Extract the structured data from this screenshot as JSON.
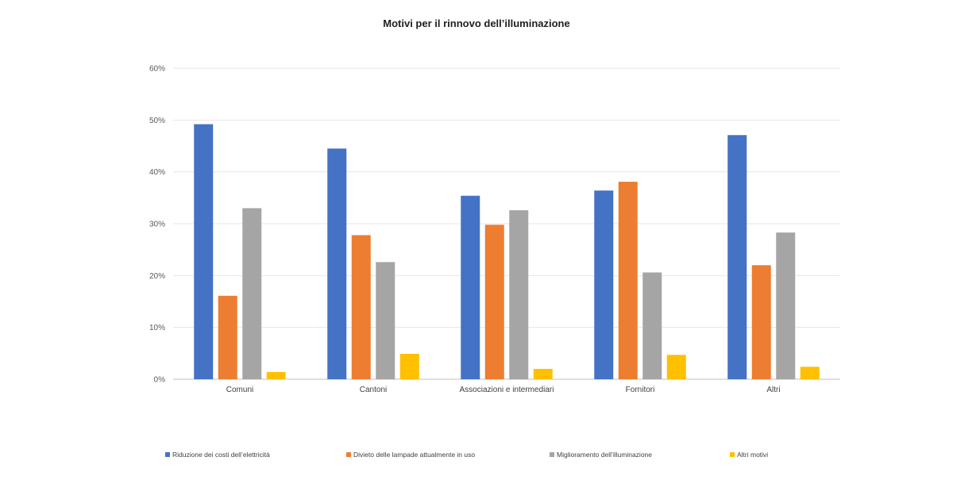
{
  "chart_data": {
    "type": "bar",
    "title": "Motivi per il rinnovo dell’illuminazione",
    "xlabel": "",
    "ylabel": "",
    "categories": [
      "Comuni",
      "Cantoni",
      "Associazioni e intermediari",
      "Fornitori",
      "Altri"
    ],
    "series": [
      {
        "name": "Riduzione dei costi dell’elettricità",
        "color": "#4472c4",
        "values": [
          49.2,
          44.5,
          35.4,
          36.4,
          47.1
        ]
      },
      {
        "name": "Divieto delle lampade attualmente in uso",
        "color": "#ed7d31",
        "values": [
          16.1,
          27.8,
          29.8,
          38.1,
          22.0
        ]
      },
      {
        "name": "Miglioramento dell’illuminazione",
        "color": "#a5a5a5",
        "values": [
          33.0,
          22.6,
          32.6,
          20.6,
          28.3
        ]
      },
      {
        "name": "Altri motivi",
        "color": "#ffc000",
        "values": [
          1.4,
          4.9,
          2.0,
          4.7,
          2.4
        ]
      }
    ],
    "ylim": [
      0,
      60
    ],
    "yticks": [
      0,
      10,
      20,
      30,
      40,
      50,
      60
    ],
    "ytick_labels": [
      "0%",
      "10%",
      "20%",
      "30%",
      "40%",
      "50%",
      "60%"
    ],
    "grid": true,
    "legend_position": "bottom"
  }
}
